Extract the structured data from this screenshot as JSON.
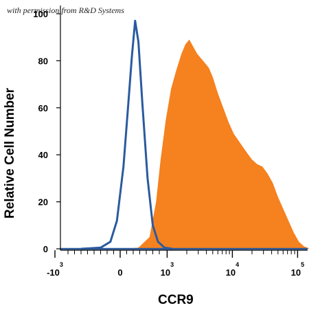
{
  "credit": "with permission from R&D Systems",
  "chart_data": {
    "type": "area",
    "xlabel": "CCR9",
    "ylabel": "Relative Cell Number",
    "x_scale": "biexponential",
    "y_ticks": [
      0,
      20,
      40,
      60,
      80,
      100
    ],
    "ylim": [
      0,
      100
    ],
    "x_ticks": [
      {
        "label": "-10",
        "exp": "3"
      },
      {
        "label": "0",
        "exp": ""
      },
      {
        "label": "10",
        "exp": "3"
      },
      {
        "label": "10",
        "exp": "4"
      },
      {
        "label": "10",
        "exp": "5"
      }
    ],
    "series": [
      {
        "color": "#f5811f",
        "style": "filled",
        "points": [
          [
            0.08,
            0
          ],
          [
            0.28,
            0.5
          ],
          [
            0.45,
            5
          ],
          [
            0.55,
            20
          ],
          [
            0.62,
            38
          ],
          [
            0.7,
            55
          ],
          [
            0.78,
            68
          ],
          [
            0.86,
            76
          ],
          [
            0.94,
            83
          ],
          [
            1.0,
            87
          ],
          [
            1.06,
            89
          ],
          [
            1.12,
            86
          ],
          [
            1.18,
            83
          ],
          [
            1.24,
            81
          ],
          [
            1.3,
            79
          ],
          [
            1.36,
            77
          ],
          [
            1.42,
            73
          ],
          [
            1.5,
            66
          ],
          [
            1.58,
            60
          ],
          [
            1.66,
            54
          ],
          [
            1.74,
            49
          ],
          [
            1.84,
            45
          ],
          [
            1.94,
            41
          ],
          [
            2.02,
            38
          ],
          [
            2.1,
            36
          ],
          [
            2.18,
            35
          ],
          [
            2.26,
            32
          ],
          [
            2.34,
            28
          ],
          [
            2.42,
            22
          ],
          [
            2.5,
            17
          ],
          [
            2.58,
            12
          ],
          [
            2.66,
            7
          ],
          [
            2.74,
            3
          ],
          [
            2.82,
            1
          ],
          [
            2.92,
            0
          ]
        ]
      },
      {
        "color": "#2a5a9e",
        "style": "line",
        "points": [
          [
            -0.6,
            0
          ],
          [
            -0.3,
            0.5
          ],
          [
            -0.15,
            3
          ],
          [
            -0.05,
            12
          ],
          [
            0.05,
            35
          ],
          [
            0.12,
            60
          ],
          [
            0.18,
            82
          ],
          [
            0.23,
            97
          ],
          [
            0.28,
            88
          ],
          [
            0.34,
            62
          ],
          [
            0.42,
            30
          ],
          [
            0.5,
            10
          ],
          [
            0.58,
            3
          ],
          [
            0.68,
            0.5
          ],
          [
            0.8,
            0
          ]
        ]
      }
    ]
  }
}
